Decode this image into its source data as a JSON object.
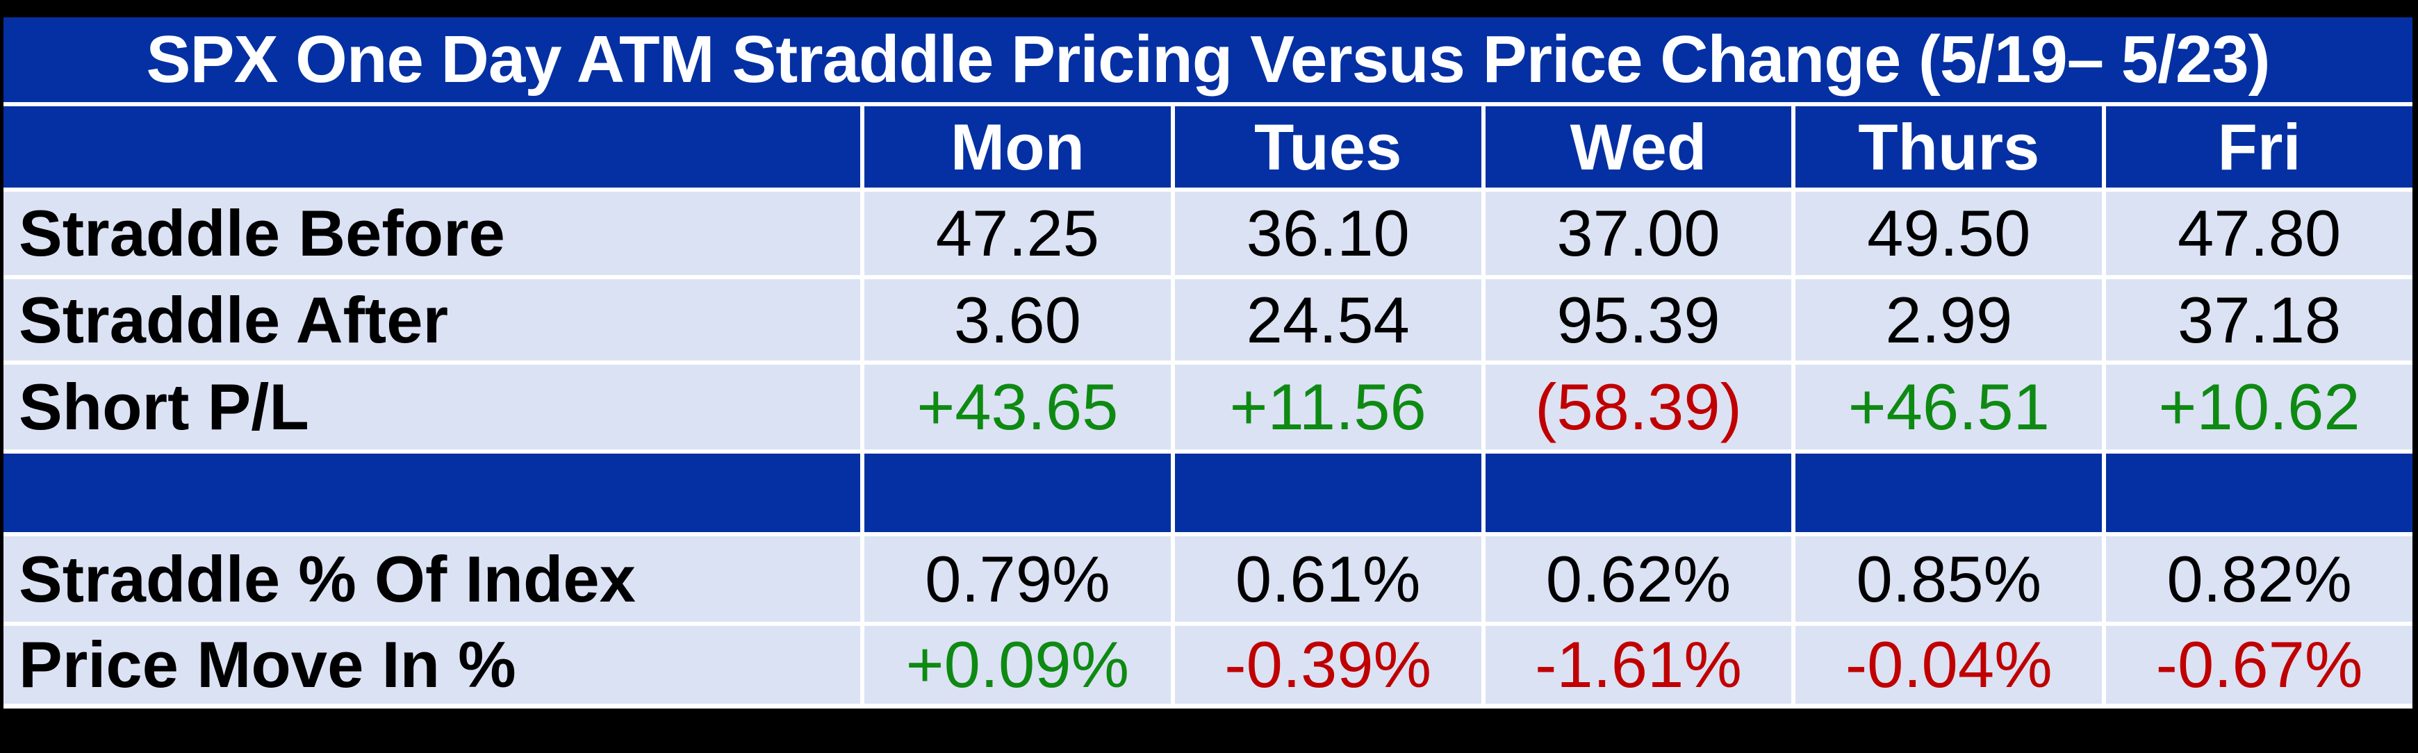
{
  "colors": {
    "background_black": "#000000",
    "header_blue": "#0430A3",
    "row_light_blue": "#DBE2F4",
    "gridline_white": "#FFFFFF",
    "positive_green": "#0E8A12",
    "negative_red": "#C00000",
    "header_text_white": "#FFFFFF",
    "body_text_black": "#000000"
  },
  "table": {
    "title": "SPX One Day ATM Straddle Pricing Versus Price Change (5/19– 5/23)",
    "columns": [
      "Mon",
      "Tues",
      "Wed",
      "Thurs",
      "Fri"
    ],
    "rows": [
      {
        "label": "Straddle Before",
        "values": [
          "47.25",
          "36.10",
          "37.00",
          "49.50",
          "47.80"
        ],
        "tones": [
          "plain",
          "plain",
          "plain",
          "plain",
          "plain"
        ]
      },
      {
        "label": "Straddle After",
        "values": [
          "3.60",
          "24.54",
          "95.39",
          "2.99",
          "37.18"
        ],
        "tones": [
          "plain",
          "plain",
          "plain",
          "plain",
          "plain"
        ]
      },
      {
        "label": "Short P/L",
        "values": [
          "+43.65",
          "+11.56",
          "(58.39)",
          "+46.51",
          "+10.62"
        ],
        "tones": [
          "pos",
          "pos",
          "neg",
          "pos",
          "pos"
        ]
      },
      {
        "label": "",
        "values": [
          "",
          "",
          "",
          "",
          ""
        ],
        "tones": [
          "plain",
          "plain",
          "plain",
          "plain",
          "plain"
        ]
      },
      {
        "label": "Straddle % Of Index",
        "values": [
          "0.79%",
          "0.61%",
          "0.62%",
          "0.85%",
          "0.82%"
        ],
        "tones": [
          "plain",
          "plain",
          "plain",
          "plain",
          "plain"
        ]
      },
      {
        "label": "Price Move In %",
        "values": [
          "+0.09%",
          "-0.39%",
          "-1.61%",
          "-0.04%",
          "-0.67%"
        ],
        "tones": [
          "pos",
          "neg",
          "neg",
          "neg",
          "neg"
        ]
      }
    ]
  },
  "chart_data": {
    "type": "table",
    "title": "SPX One Day ATM Straddle Pricing Versus Price Change (5/19– 5/23)",
    "categories": [
      "Mon",
      "Tues",
      "Wed",
      "Thurs",
      "Fri"
    ],
    "series": [
      {
        "name": "Straddle Before",
        "values": [
          47.25,
          36.1,
          37.0,
          49.5,
          47.8
        ]
      },
      {
        "name": "Straddle After",
        "values": [
          3.6,
          24.54,
          95.39,
          2.99,
          37.18
        ]
      },
      {
        "name": "Short P/L",
        "values": [
          43.65,
          11.56,
          -58.39,
          46.51,
          10.62
        ]
      },
      {
        "name": "Straddle % Of Index",
        "values": [
          0.79,
          0.61,
          0.62,
          0.85,
          0.82
        ],
        "unit": "%"
      },
      {
        "name": "Price Move In %",
        "values": [
          0.09,
          -0.39,
          -1.61,
          -0.04,
          -0.67
        ],
        "unit": "%"
      }
    ]
  }
}
